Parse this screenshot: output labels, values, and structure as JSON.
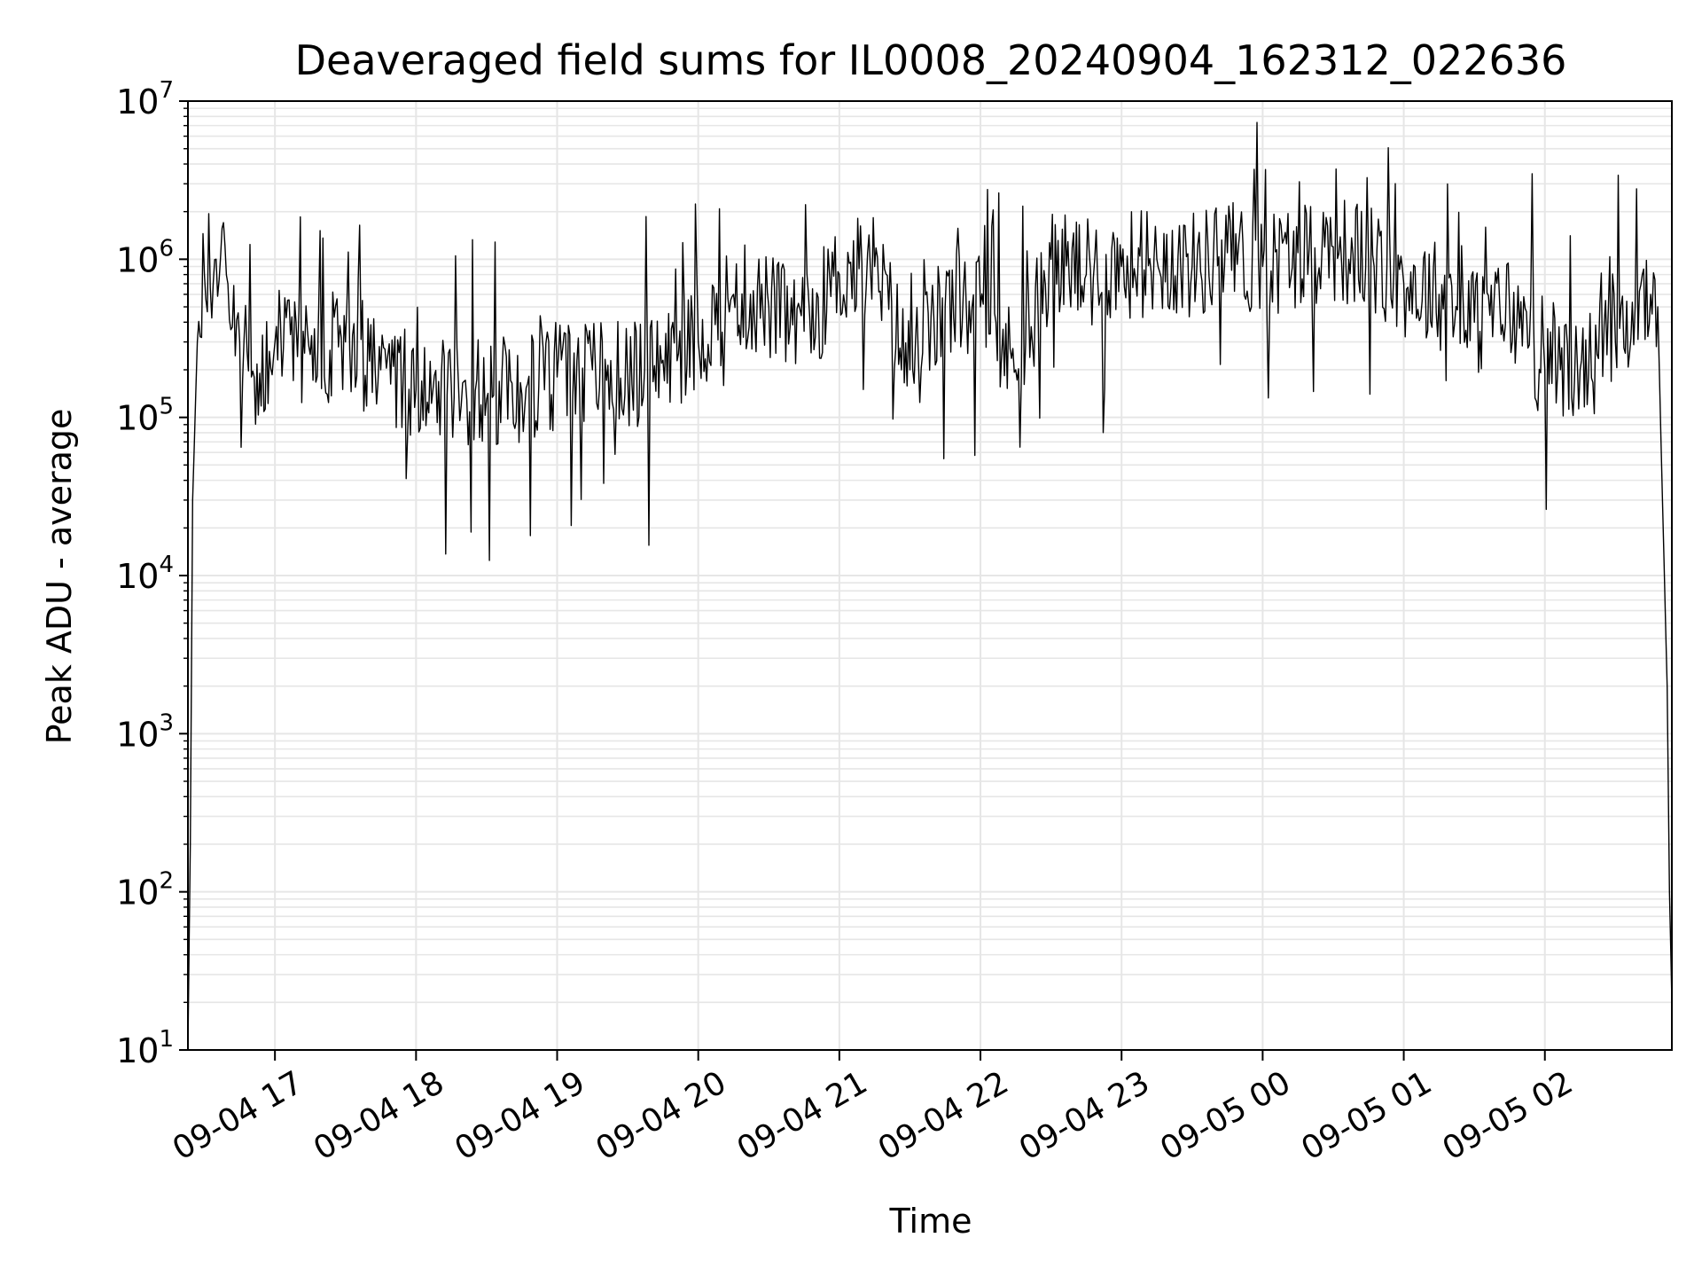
{
  "chart_data": {
    "type": "line",
    "title": "Deaveraged field sums for IL0008_20240904_162312_022636",
    "xlabel": "Time",
    "ylabel": "Peak ADU - average",
    "yscale": "log",
    "ylim": [
      10,
      10000000
    ],
    "xlim": [
      "2024-09-04 16:23",
      "2024-09-05 02:54"
    ],
    "grid": true,
    "legend": "none",
    "line_color": "#000000",
    "x_ticks": [
      "09-04 17",
      "09-04 18",
      "09-04 19",
      "09-04 20",
      "09-04 21",
      "09-04 22",
      "09-04 23",
      "09-05 00",
      "09-05 01",
      "09-05 02"
    ],
    "y_tick_exponents": [
      "1",
      "2",
      "3",
      "4",
      "5",
      "6",
      "7"
    ],
    "y_tick_base": "10",
    "series": [
      {
        "x": [
          "2024-09-04 16:23",
          "2024-09-04 16:24",
          "2024-09-04 16:25",
          "2024-09-04 16:27",
          "2024-09-04 16:30",
          "2024-09-04 16:35",
          "2024-09-04 16:40",
          "2024-09-04 16:45",
          "2024-09-04 16:50",
          "2024-09-04 17:00",
          "2024-09-04 17:15",
          "2024-09-04 17:30",
          "2024-09-04 17:45",
          "2024-09-04 18:00",
          "2024-09-04 18:15",
          "2024-09-04 18:30",
          "2024-09-04 18:45",
          "2024-09-04 19:00",
          "2024-09-04 19:15",
          "2024-09-04 19:30",
          "2024-09-04 19:45",
          "2024-09-04 20:00",
          "2024-09-04 20:15",
          "2024-09-04 20:30",
          "2024-09-04 20:45",
          "2024-09-04 21:00",
          "2024-09-04 21:15",
          "2024-09-04 21:30",
          "2024-09-04 21:45",
          "2024-09-04 22:00",
          "2024-09-04 22:15",
          "2024-09-04 22:30",
          "2024-09-04 22:45",
          "2024-09-04 23:00",
          "2024-09-04 23:15",
          "2024-09-04 23:30",
          "2024-09-04 23:45",
          "2024-09-05 00:00",
          "2024-09-05 00:15",
          "2024-09-05 00:30",
          "2024-09-05 00:45",
          "2024-09-05 01:00",
          "2024-09-05 01:15",
          "2024-09-05 01:30",
          "2024-09-05 01:45",
          "2024-09-05 02:00",
          "2024-09-05 02:15",
          "2024-09-05 02:30",
          "2024-09-05 02:45",
          "2024-09-05 02:48",
          "2024-09-05 02:50",
          "2024-09-05 02:52",
          "2024-09-05 02:53",
          "2024-09-05 02:54"
        ],
        "y": [
          10,
          200,
          30000,
          300000,
          800000,
          1000000,
          700000,
          300000,
          180000,
          300000,
          250000,
          300000,
          200000,
          150000,
          160000,
          130000,
          140000,
          180000,
          200000,
          180000,
          230000,
          300000,
          600000,
          500000,
          350000,
          800000,
          900000,
          200000,
          500000,
          500000,
          200000,
          1000000,
          800000,
          900000,
          1000000,
          900000,
          1100000,
          900000,
          1100000,
          1200000,
          1000000,
          700000,
          600000,
          400000,
          500000,
          200000,
          200000,
          300000,
          600000,
          500000,
          30000,
          2000,
          100,
          20
        ]
      }
    ]
  }
}
